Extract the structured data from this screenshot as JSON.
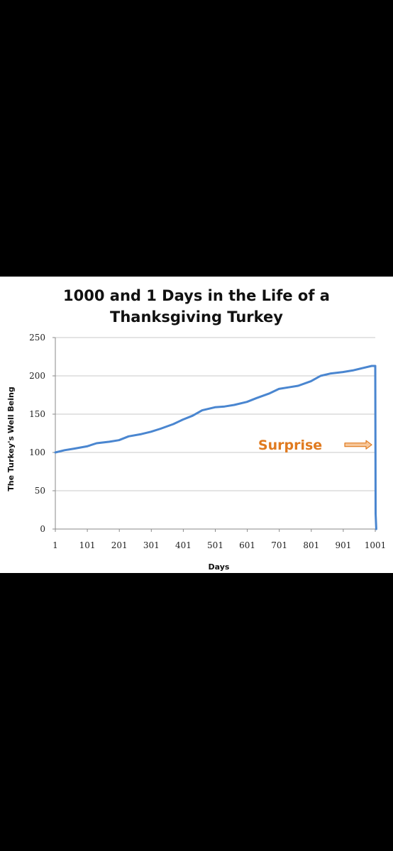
{
  "chart_data": {
    "type": "line",
    "title_lines": [
      "1000 and 1 Days in the Life of a",
      "Thanksgiving Turkey"
    ],
    "xlabel": "Days",
    "ylabel": "The Turkey's Well Being",
    "x_ticks": [
      "1",
      "101",
      "201",
      "301",
      "401",
      "501",
      "601",
      "701",
      "801",
      "901",
      "1001"
    ],
    "y_ticks": [
      0,
      50,
      100,
      150,
      200,
      250
    ],
    "xlim": [
      1,
      1001
    ],
    "ylim": [
      0,
      250
    ],
    "grid": "horizontal",
    "series": [
      {
        "color": "#4a86d0",
        "x": [
          1,
          30,
          60,
          100,
          130,
          170,
          200,
          230,
          270,
          300,
          330,
          370,
          400,
          430,
          460,
          500,
          530,
          560,
          600,
          630,
          670,
          700,
          730,
          760,
          800,
          830,
          860,
          900,
          930,
          960,
          990,
          1001,
          1002,
          1004
        ],
        "y": [
          100,
          103,
          105,
          108,
          112,
          114,
          116,
          121,
          124,
          127,
          131,
          137,
          143,
          148,
          155,
          159,
          160,
          162,
          166,
          171,
          177,
          183,
          185,
          187,
          193,
          200,
          203,
          205,
          207,
          210,
          213,
          213,
          20,
          0
        ]
      }
    ],
    "annotations": [
      {
        "text": "Surprise",
        "x": 735,
        "y": 110,
        "color": "#e07a1f",
        "arrow_to": [
          990,
          110
        ]
      }
    ]
  }
}
